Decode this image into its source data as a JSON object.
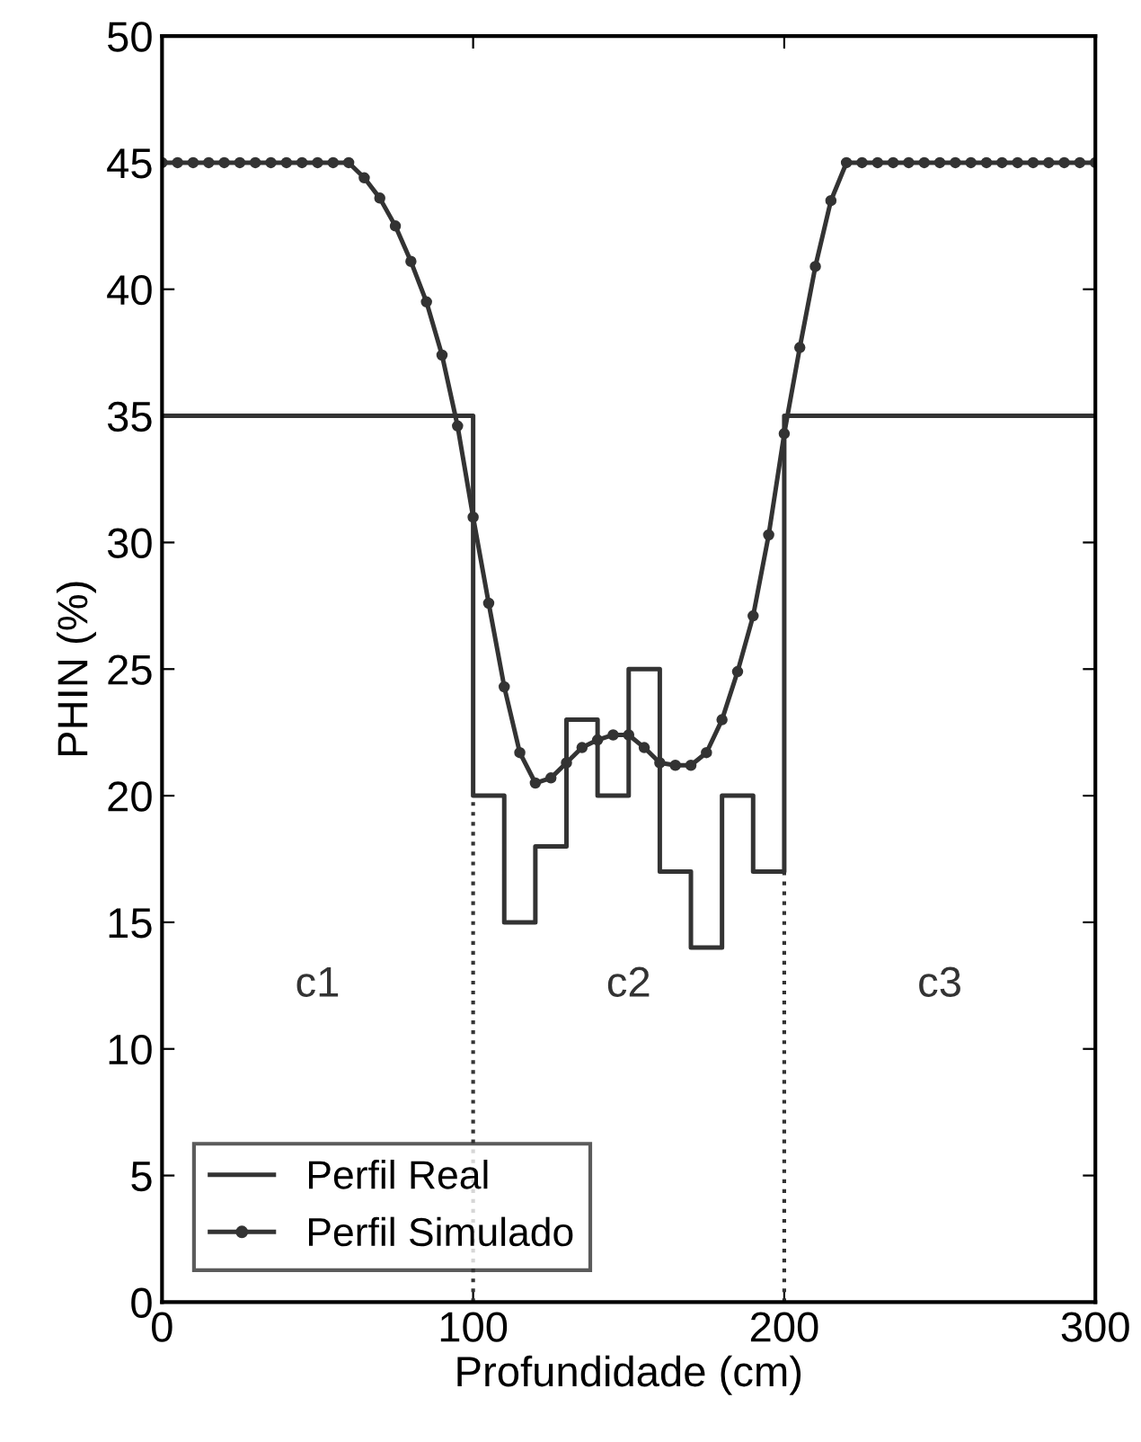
{
  "chart_data": {
    "type": "line",
    "xlabel": "Profundidade (cm)",
    "ylabel": "PHIN (%)",
    "xlim": [
      0,
      300
    ],
    "xticks": [
      0,
      100,
      200,
      300
    ],
    "ylim": [
      0,
      50
    ],
    "yticks": [
      0,
      5,
      10,
      15,
      20,
      25,
      30,
      35,
      40,
      45,
      50
    ],
    "grid": false,
    "legend": "bottom left",
    "series": [
      {
        "name": "Perfil Real",
        "type": "step",
        "color": "#333333",
        "marker": "none",
        "x": [
          0,
          100,
          110,
          120,
          130,
          140,
          150,
          160,
          170,
          180,
          190,
          200,
          300
        ],
        "values": [
          35,
          20,
          15,
          18,
          23,
          20,
          25,
          17,
          14,
          20,
          17,
          35,
          35
        ]
      },
      {
        "name": "Perfil Simulado",
        "color": "#333333",
        "marker": "circle",
        "x": [
          0,
          5,
          10,
          15,
          20,
          25,
          30,
          35,
          40,
          45,
          50,
          55,
          60,
          65,
          70,
          75,
          80,
          85,
          90,
          95,
          100,
          105,
          110,
          115,
          120,
          125,
          130,
          135,
          140,
          145,
          150,
          155,
          160,
          165,
          170,
          175,
          180,
          185,
          190,
          195,
          200,
          205,
          210,
          215,
          220,
          225,
          230,
          235,
          240,
          245,
          250,
          255,
          260,
          265,
          270,
          275,
          280,
          285,
          290,
          295,
          300
        ],
        "values": [
          45,
          45,
          45,
          45,
          45,
          45,
          45,
          45,
          45,
          45,
          45,
          45,
          45,
          44.4,
          43.6,
          42.5,
          41.1,
          39.5,
          37.4,
          34.6,
          31.0,
          27.6,
          24.3,
          21.7,
          20.5,
          20.7,
          21.3,
          21.9,
          22.2,
          22.4,
          22.4,
          21.9,
          21.3,
          21.2,
          21.2,
          21.7,
          23.0,
          24.9,
          27.1,
          30.3,
          34.3,
          37.7,
          40.9,
          43.5,
          45,
          45,
          45,
          45,
          45,
          45,
          45,
          45,
          45,
          45,
          45,
          45,
          45,
          45,
          45,
          45,
          45
        ]
      }
    ],
    "ref_lines": [
      {
        "axis": "x",
        "value": 100,
        "line_style": "dotted",
        "color": "#333333"
      },
      {
        "axis": "x",
        "value": 200,
        "line_style": "dotted",
        "color": "#333333"
      }
    ],
    "annotations": [
      "c1",
      "c2",
      "c3"
    ]
  }
}
